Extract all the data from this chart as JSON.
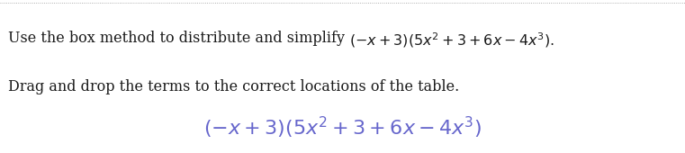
{
  "line1_text": "Use the box method to distribute and simplify ",
  "line1_math": "(-x+3)(5x^2+3+6x-4x^3).",
  "line2": "Drag and drop the terms to the correct locations of the table.",
  "math_expr": "(-x+3)(5x^2+3+6x-4x^3)",
  "background_color": "#ffffff",
  "text_color": "#1a1a1a",
  "math_color_inline": "#1a1a1a",
  "math_color_large": "#6666cc",
  "border_color": "#999999",
  "body_fontsize": 11.5,
  "math_fontsize": 16,
  "fig_width": 7.61,
  "fig_height": 1.7,
  "dpi": 100
}
